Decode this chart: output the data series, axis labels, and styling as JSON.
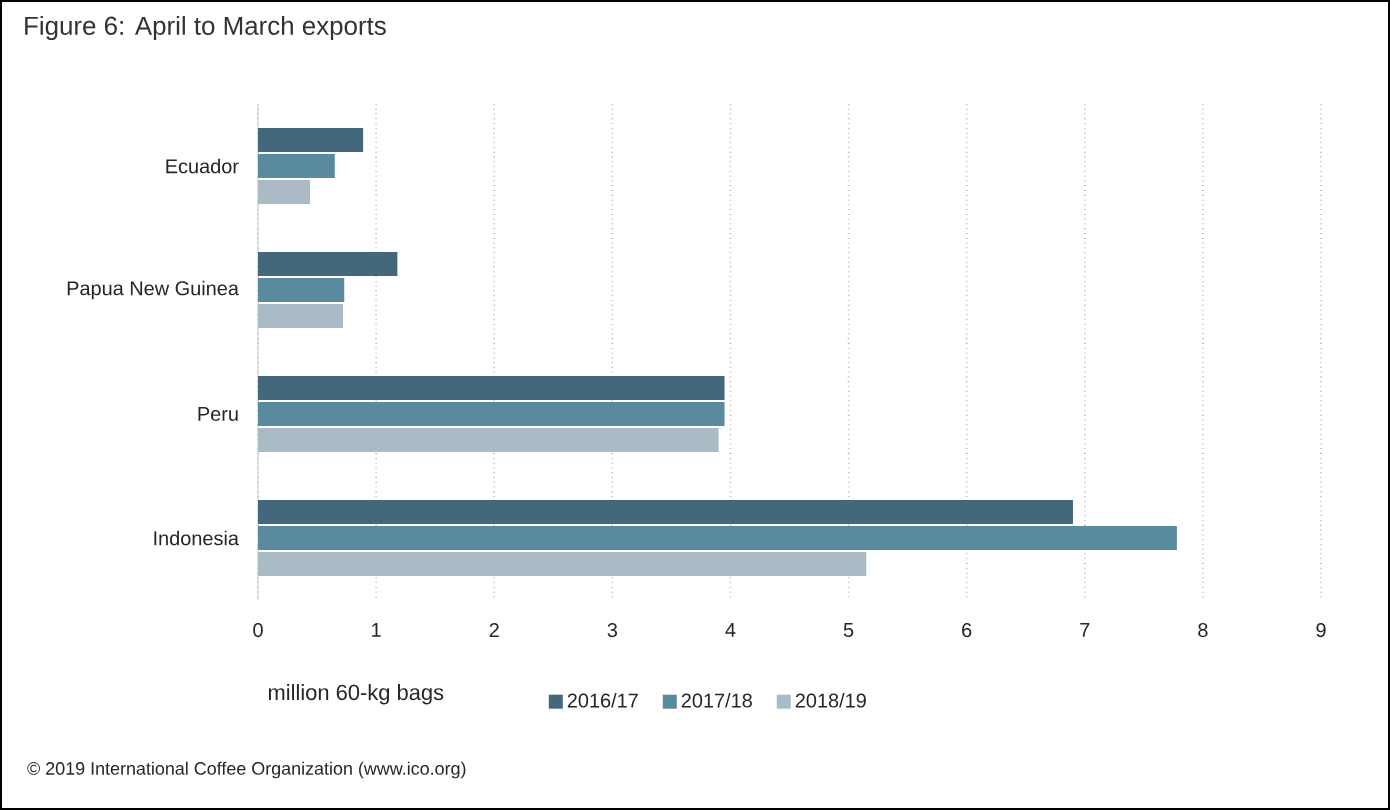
{
  "chart_data": {
    "type": "bar",
    "orientation": "horizontal",
    "title": "Figure 6: April to March exports",
    "categories": [
      "Ecuador",
      "Papua New Guinea",
      "Peru",
      "Indonesia"
    ],
    "series": [
      {
        "name": "2016/17",
        "color": "#44687b",
        "values": [
          0.89,
          1.18,
          3.95,
          6.9
        ]
      },
      {
        "name": "2017/18",
        "color": "#5a8a9f",
        "values": [
          0.65,
          0.73,
          3.95,
          7.78
        ]
      },
      {
        "name": "2018/19",
        "color": "#aabbc6",
        "values": [
          0.44,
          0.72,
          3.9,
          5.15
        ]
      }
    ],
    "xlabel": "million 60-kg bags",
    "xlim": [
      0,
      9
    ],
    "xticks": [
      0,
      1,
      2,
      3,
      4,
      5,
      6,
      7,
      8,
      9
    ],
    "grid": "x",
    "legend": "bottom",
    "annotations": [
      "© 2019 International Coffee Organization (www.ico.org)"
    ]
  }
}
